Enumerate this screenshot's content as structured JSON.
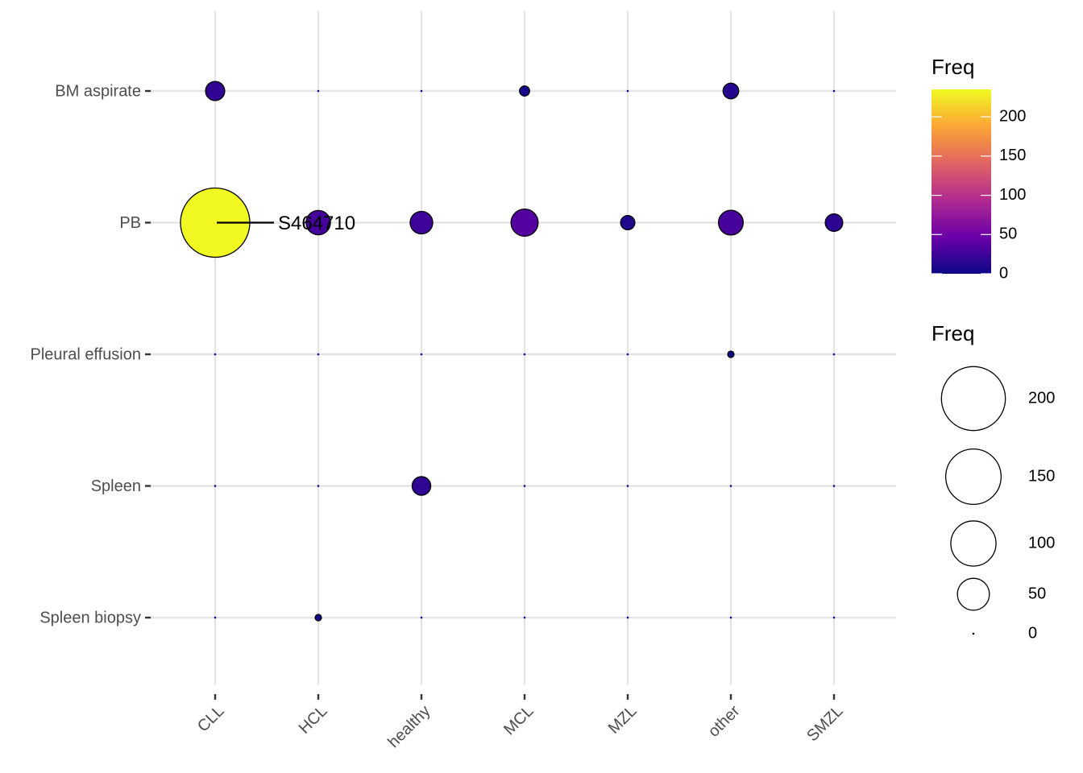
{
  "chart_data": {
    "type": "scatter",
    "subtype": "bubble",
    "x_categories": [
      "CLL",
      "HCL",
      "healthy",
      "MCL",
      "MZL",
      "other",
      "SMZL"
    ],
    "y_categories": [
      "BM aspirate",
      "PB",
      "Pleural effusion",
      "Spleen",
      "Spleen biopsy"
    ],
    "points": [
      {
        "x": "CLL",
        "y": "BM aspirate",
        "freq": 18
      },
      {
        "x": "HCL",
        "y": "BM aspirate",
        "freq": 0
      },
      {
        "x": "healthy",
        "y": "BM aspirate",
        "freq": 0
      },
      {
        "x": "MCL",
        "y": "BM aspirate",
        "freq": 5
      },
      {
        "x": "MZL",
        "y": "BM aspirate",
        "freq": 0
      },
      {
        "x": "other",
        "y": "BM aspirate",
        "freq": 12
      },
      {
        "x": "SMZL",
        "y": "BM aspirate",
        "freq": 0
      },
      {
        "x": "CLL",
        "y": "PB",
        "freq": 235
      },
      {
        "x": "HCL",
        "y": "PB",
        "freq": 29
      },
      {
        "x": "healthy",
        "y": "PB",
        "freq": 25
      },
      {
        "x": "MCL",
        "y": "PB",
        "freq": 36
      },
      {
        "x": "MZL",
        "y": "PB",
        "freq": 10
      },
      {
        "x": "other",
        "y": "PB",
        "freq": 30
      },
      {
        "x": "SMZL",
        "y": "PB",
        "freq": 15
      },
      {
        "x": "CLL",
        "y": "Pleural effusion",
        "freq": 0
      },
      {
        "x": "HCL",
        "y": "Pleural effusion",
        "freq": 0
      },
      {
        "x": "healthy",
        "y": "Pleural effusion",
        "freq": 0
      },
      {
        "x": "MCL",
        "y": "Pleural effusion",
        "freq": 0
      },
      {
        "x": "MZL",
        "y": "Pleural effusion",
        "freq": 0
      },
      {
        "x": "other",
        "y": "Pleural effusion",
        "freq": 2
      },
      {
        "x": "SMZL",
        "y": "Pleural effusion",
        "freq": 0
      },
      {
        "x": "CLL",
        "y": "Spleen",
        "freq": 0
      },
      {
        "x": "HCL",
        "y": "Spleen",
        "freq": 0
      },
      {
        "x": "healthy",
        "y": "Spleen",
        "freq": 17
      },
      {
        "x": "MCL",
        "y": "Spleen",
        "freq": 0
      },
      {
        "x": "MZL",
        "y": "Spleen",
        "freq": 0
      },
      {
        "x": "other",
        "y": "Spleen",
        "freq": 0
      },
      {
        "x": "SMZL",
        "y": "Spleen",
        "freq": 0
      },
      {
        "x": "CLL",
        "y": "Spleen biopsy",
        "freq": 0
      },
      {
        "x": "HCL",
        "y": "Spleen biopsy",
        "freq": 2
      },
      {
        "x": "healthy",
        "y": "Spleen biopsy",
        "freq": 0
      },
      {
        "x": "MCL",
        "y": "Spleen biopsy",
        "freq": 0
      },
      {
        "x": "MZL",
        "y": "Spleen biopsy",
        "freq": 0
      },
      {
        "x": "other",
        "y": "Spleen biopsy",
        "freq": 0
      },
      {
        "x": "SMZL",
        "y": "Spleen biopsy",
        "freq": 0
      }
    ],
    "annotation": {
      "label": "S464710",
      "x": "CLL",
      "y": "PB"
    },
    "color_legend": {
      "title": "Freq",
      "palette": "plasma",
      "range": [
        0,
        235
      ],
      "ticks": [
        0,
        50,
        100,
        150,
        200
      ]
    },
    "size_legend": {
      "title": "Freq",
      "ticks": [
        200,
        150,
        100,
        50,
        0
      ]
    },
    "grid": true,
    "legend_position": "right"
  },
  "colors": {
    "plasma": [
      "#0d0887",
      "#6a00a8",
      "#b12a90",
      "#e16462",
      "#fca636",
      "#f0f921"
    ],
    "grid": "#e5e5e5"
  }
}
